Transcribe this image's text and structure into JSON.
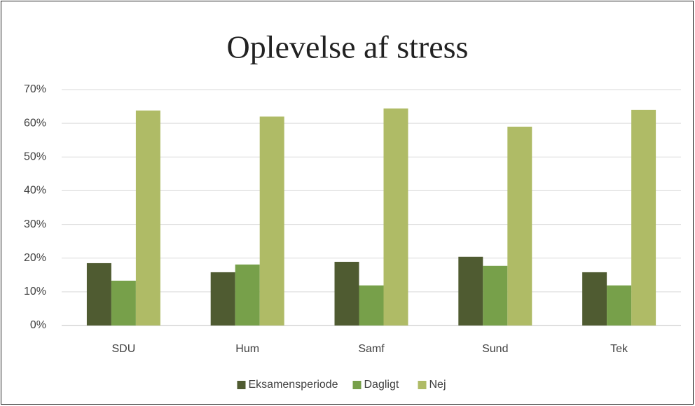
{
  "chart_data": {
    "type": "bar",
    "title": "Oplevelse af stress",
    "categories": [
      "SDU",
      "Hum",
      "Samf",
      "Sund",
      "Tek"
    ],
    "series": [
      {
        "name": "Eksamensperiode",
        "color": "#4f5b31",
        "values": [
          18.5,
          15.8,
          18.9,
          20.4,
          15.8
        ]
      },
      {
        "name": "Dagligt",
        "color": "#77a04a",
        "values": [
          13.3,
          18.1,
          11.9,
          17.7,
          11.9
        ]
      },
      {
        "name": "Nej",
        "color": "#afbb66",
        "values": [
          63.8,
          62,
          64.4,
          59,
          64
        ]
      }
    ],
    "ylim": [
      0,
      70
    ],
    "yticks": [
      {
        "value": 0,
        "label": "0%"
      },
      {
        "value": 10,
        "label": "10%"
      },
      {
        "value": 20,
        "label": "20%"
      },
      {
        "value": 30,
        "label": "30%"
      },
      {
        "value": 40,
        "label": "40%"
      },
      {
        "value": 50,
        "label": "50%"
      },
      {
        "value": 60,
        "label": "60%"
      },
      {
        "value": 70,
        "label": "70%"
      }
    ],
    "grid": true,
    "legend": "bottom"
  }
}
